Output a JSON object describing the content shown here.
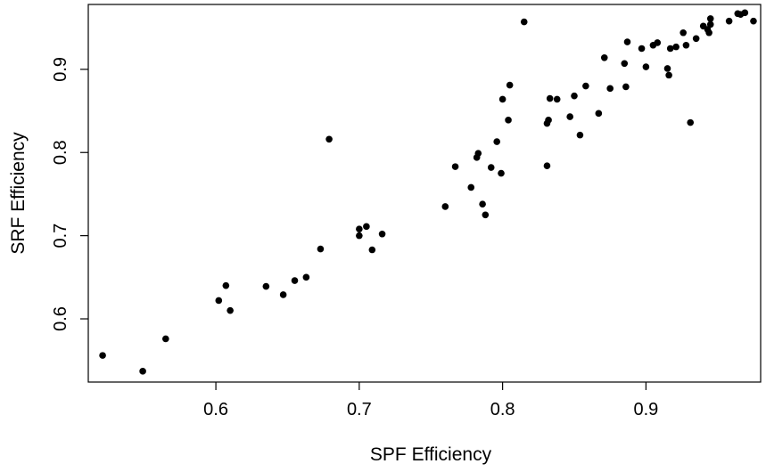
{
  "chart_data": {
    "type": "scatter",
    "xlabel": "SPF Efficiency",
    "ylabel": "SRF Efficiency",
    "xlim": [
      0.511,
      0.98
    ],
    "ylim": [
      0.524,
      0.978
    ],
    "x_ticks": [
      0.6,
      0.7,
      0.8,
      0.9
    ],
    "y_ticks": [
      0.6,
      0.7,
      0.8,
      0.9
    ],
    "x_tick_labels": [
      "0.6",
      "0.7",
      "0.8",
      "0.9"
    ],
    "y_tick_labels": [
      "0.6",
      "0.7",
      "0.8",
      "0.9"
    ],
    "grid": false,
    "legend": "none",
    "point_color": "#000000",
    "points": [
      [
        0.521,
        0.556
      ],
      [
        0.549,
        0.537
      ],
      [
        0.565,
        0.576
      ],
      [
        0.602,
        0.622
      ],
      [
        0.607,
        0.64
      ],
      [
        0.61,
        0.61
      ],
      [
        0.635,
        0.639
      ],
      [
        0.647,
        0.629
      ],
      [
        0.655,
        0.646
      ],
      [
        0.663,
        0.65
      ],
      [
        0.673,
        0.684
      ],
      [
        0.679,
        0.816
      ],
      [
        0.7,
        0.708
      ],
      [
        0.7,
        0.7
      ],
      [
        0.705,
        0.711
      ],
      [
        0.709,
        0.683
      ],
      [
        0.716,
        0.702
      ],
      [
        0.76,
        0.735
      ],
      [
        0.767,
        0.783
      ],
      [
        0.778,
        0.758
      ],
      [
        0.782,
        0.794
      ],
      [
        0.783,
        0.799
      ],
      [
        0.786,
        0.738
      ],
      [
        0.788,
        0.725
      ],
      [
        0.792,
        0.782
      ],
      [
        0.796,
        0.813
      ],
      [
        0.799,
        0.775
      ],
      [
        0.8,
        0.864
      ],
      [
        0.804,
        0.839
      ],
      [
        0.805,
        0.881
      ],
      [
        0.815,
        0.957
      ],
      [
        0.831,
        0.784
      ],
      [
        0.831,
        0.835
      ],
      [
        0.832,
        0.839
      ],
      [
        0.833,
        0.865
      ],
      [
        0.838,
        0.864
      ],
      [
        0.847,
        0.843
      ],
      [
        0.85,
        0.868
      ],
      [
        0.854,
        0.821
      ],
      [
        0.858,
        0.88
      ],
      [
        0.867,
        0.847
      ],
      [
        0.871,
        0.914
      ],
      [
        0.875,
        0.877
      ],
      [
        0.885,
        0.907
      ],
      [
        0.886,
        0.879
      ],
      [
        0.887,
        0.933
      ],
      [
        0.897,
        0.925
      ],
      [
        0.9,
        0.903
      ],
      [
        0.905,
        0.929
      ],
      [
        0.908,
        0.932
      ],
      [
        0.915,
        0.901
      ],
      [
        0.916,
        0.893
      ],
      [
        0.917,
        0.925
      ],
      [
        0.921,
        0.927
      ],
      [
        0.926,
        0.944
      ],
      [
        0.928,
        0.929
      ],
      [
        0.931,
        0.836
      ],
      [
        0.935,
        0.937
      ],
      [
        0.94,
        0.952
      ],
      [
        0.943,
        0.948
      ],
      [
        0.944,
        0.944
      ],
      [
        0.945,
        0.954
      ],
      [
        0.945,
        0.961
      ],
      [
        0.958,
        0.958
      ],
      [
        0.964,
        0.967
      ],
      [
        0.966,
        0.966
      ],
      [
        0.969,
        0.968
      ],
      [
        0.975,
        0.958
      ]
    ]
  }
}
